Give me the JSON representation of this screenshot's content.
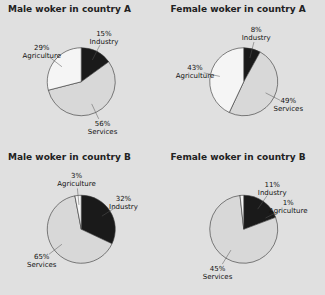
{
  "chart_data": [
    {
      "type": "pie",
      "title": "Male woker in country A",
      "categories": [
        "Industry",
        "Services",
        "Agriculture"
      ],
      "values": [
        15,
        56,
        29
      ],
      "value_labels": [
        "15%",
        "56%",
        "29%"
      ],
      "colors": [
        "#1a1a1a",
        "#d8d8d8",
        "#f5f5f5"
      ],
      "data_labels": true
    },
    {
      "type": "pie",
      "title": "Female woker in country A",
      "categories": [
        "Industry",
        "Services",
        "Agriculture"
      ],
      "values": [
        8,
        49,
        43
      ],
      "value_labels": [
        "8%",
        "49%",
        "43%"
      ],
      "colors": [
        "#1a1a1a",
        "#d8d8d8",
        "#f5f5f5"
      ],
      "data_labels": true
    },
    {
      "type": "pie",
      "title": "Male woker in country B",
      "categories": [
        "Industry",
        "Services",
        "Agriculture"
      ],
      "values": [
        32,
        65,
        3
      ],
      "value_labels": [
        "32%",
        "65%",
        "3%"
      ],
      "colors": [
        "#1a1a1a",
        "#d8d8d8",
        "#f5f5f5"
      ],
      "data_labels": true
    },
    {
      "type": "pie",
      "title": "Female woker in country B",
      "categories": [
        "Industry",
        "Services",
        "Agriculture"
      ],
      "values": [
        11,
        45,
        1
      ],
      "value_labels": [
        "11%",
        "45%",
        "1%"
      ],
      "colors": [
        "#1a1a1a",
        "#d8d8d8",
        "#f5f5f5"
      ],
      "data_labels": true
    }
  ]
}
